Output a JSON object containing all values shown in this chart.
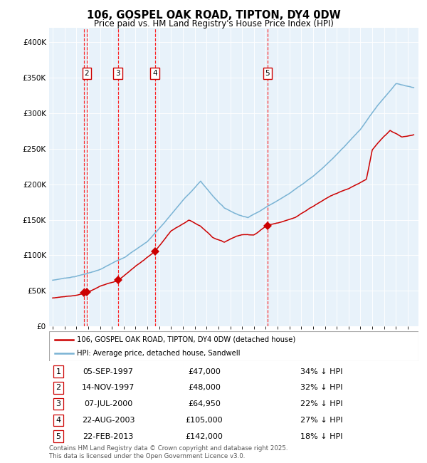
{
  "title_line1": "106, GOSPEL OAK ROAD, TIPTON, DY4 0DW",
  "title_line2": "Price paid vs. HM Land Registry's House Price Index (HPI)",
  "ylim": [
    0,
    420000
  ],
  "yticks": [
    0,
    50000,
    100000,
    150000,
    200000,
    250000,
    300000,
    350000,
    400000
  ],
  "hpi_color": "#7ab3d4",
  "price_color": "#cc0000",
  "bg_color": "#e8f2fa",
  "sale_dates_decimal": [
    1997.67,
    1997.87,
    2000.51,
    2003.64,
    2013.14
  ],
  "sale_prices": [
    47000,
    48000,
    64950,
    105000,
    142000
  ],
  "sale_labels": [
    "1",
    "2",
    "3",
    "4",
    "5"
  ],
  "transactions": [
    {
      "num": "1",
      "date": "05-SEP-1997",
      "price": "£47,000",
      "pct": "34% ↓ HPI"
    },
    {
      "num": "2",
      "date": "14-NOV-1997",
      "price": "£48,000",
      "pct": "32% ↓ HPI"
    },
    {
      "num": "3",
      "date": "07-JUL-2000",
      "price": "£64,950",
      "pct": "22% ↓ HPI"
    },
    {
      "num": "4",
      "date": "22-AUG-2003",
      "price": "£105,000",
      "pct": "27% ↓ HPI"
    },
    {
      "num": "5",
      "date": "22-FEB-2013",
      "price": "£142,000",
      "pct": "18% ↓ HPI"
    }
  ],
  "legend_label_red": "106, GOSPEL OAK ROAD, TIPTON, DY4 0DW (detached house)",
  "legend_label_blue": "HPI: Average price, detached house, Sandwell",
  "footer": "Contains HM Land Registry data © Crown copyright and database right 2025.\nThis data is licensed under the Open Government Licence v3.0."
}
